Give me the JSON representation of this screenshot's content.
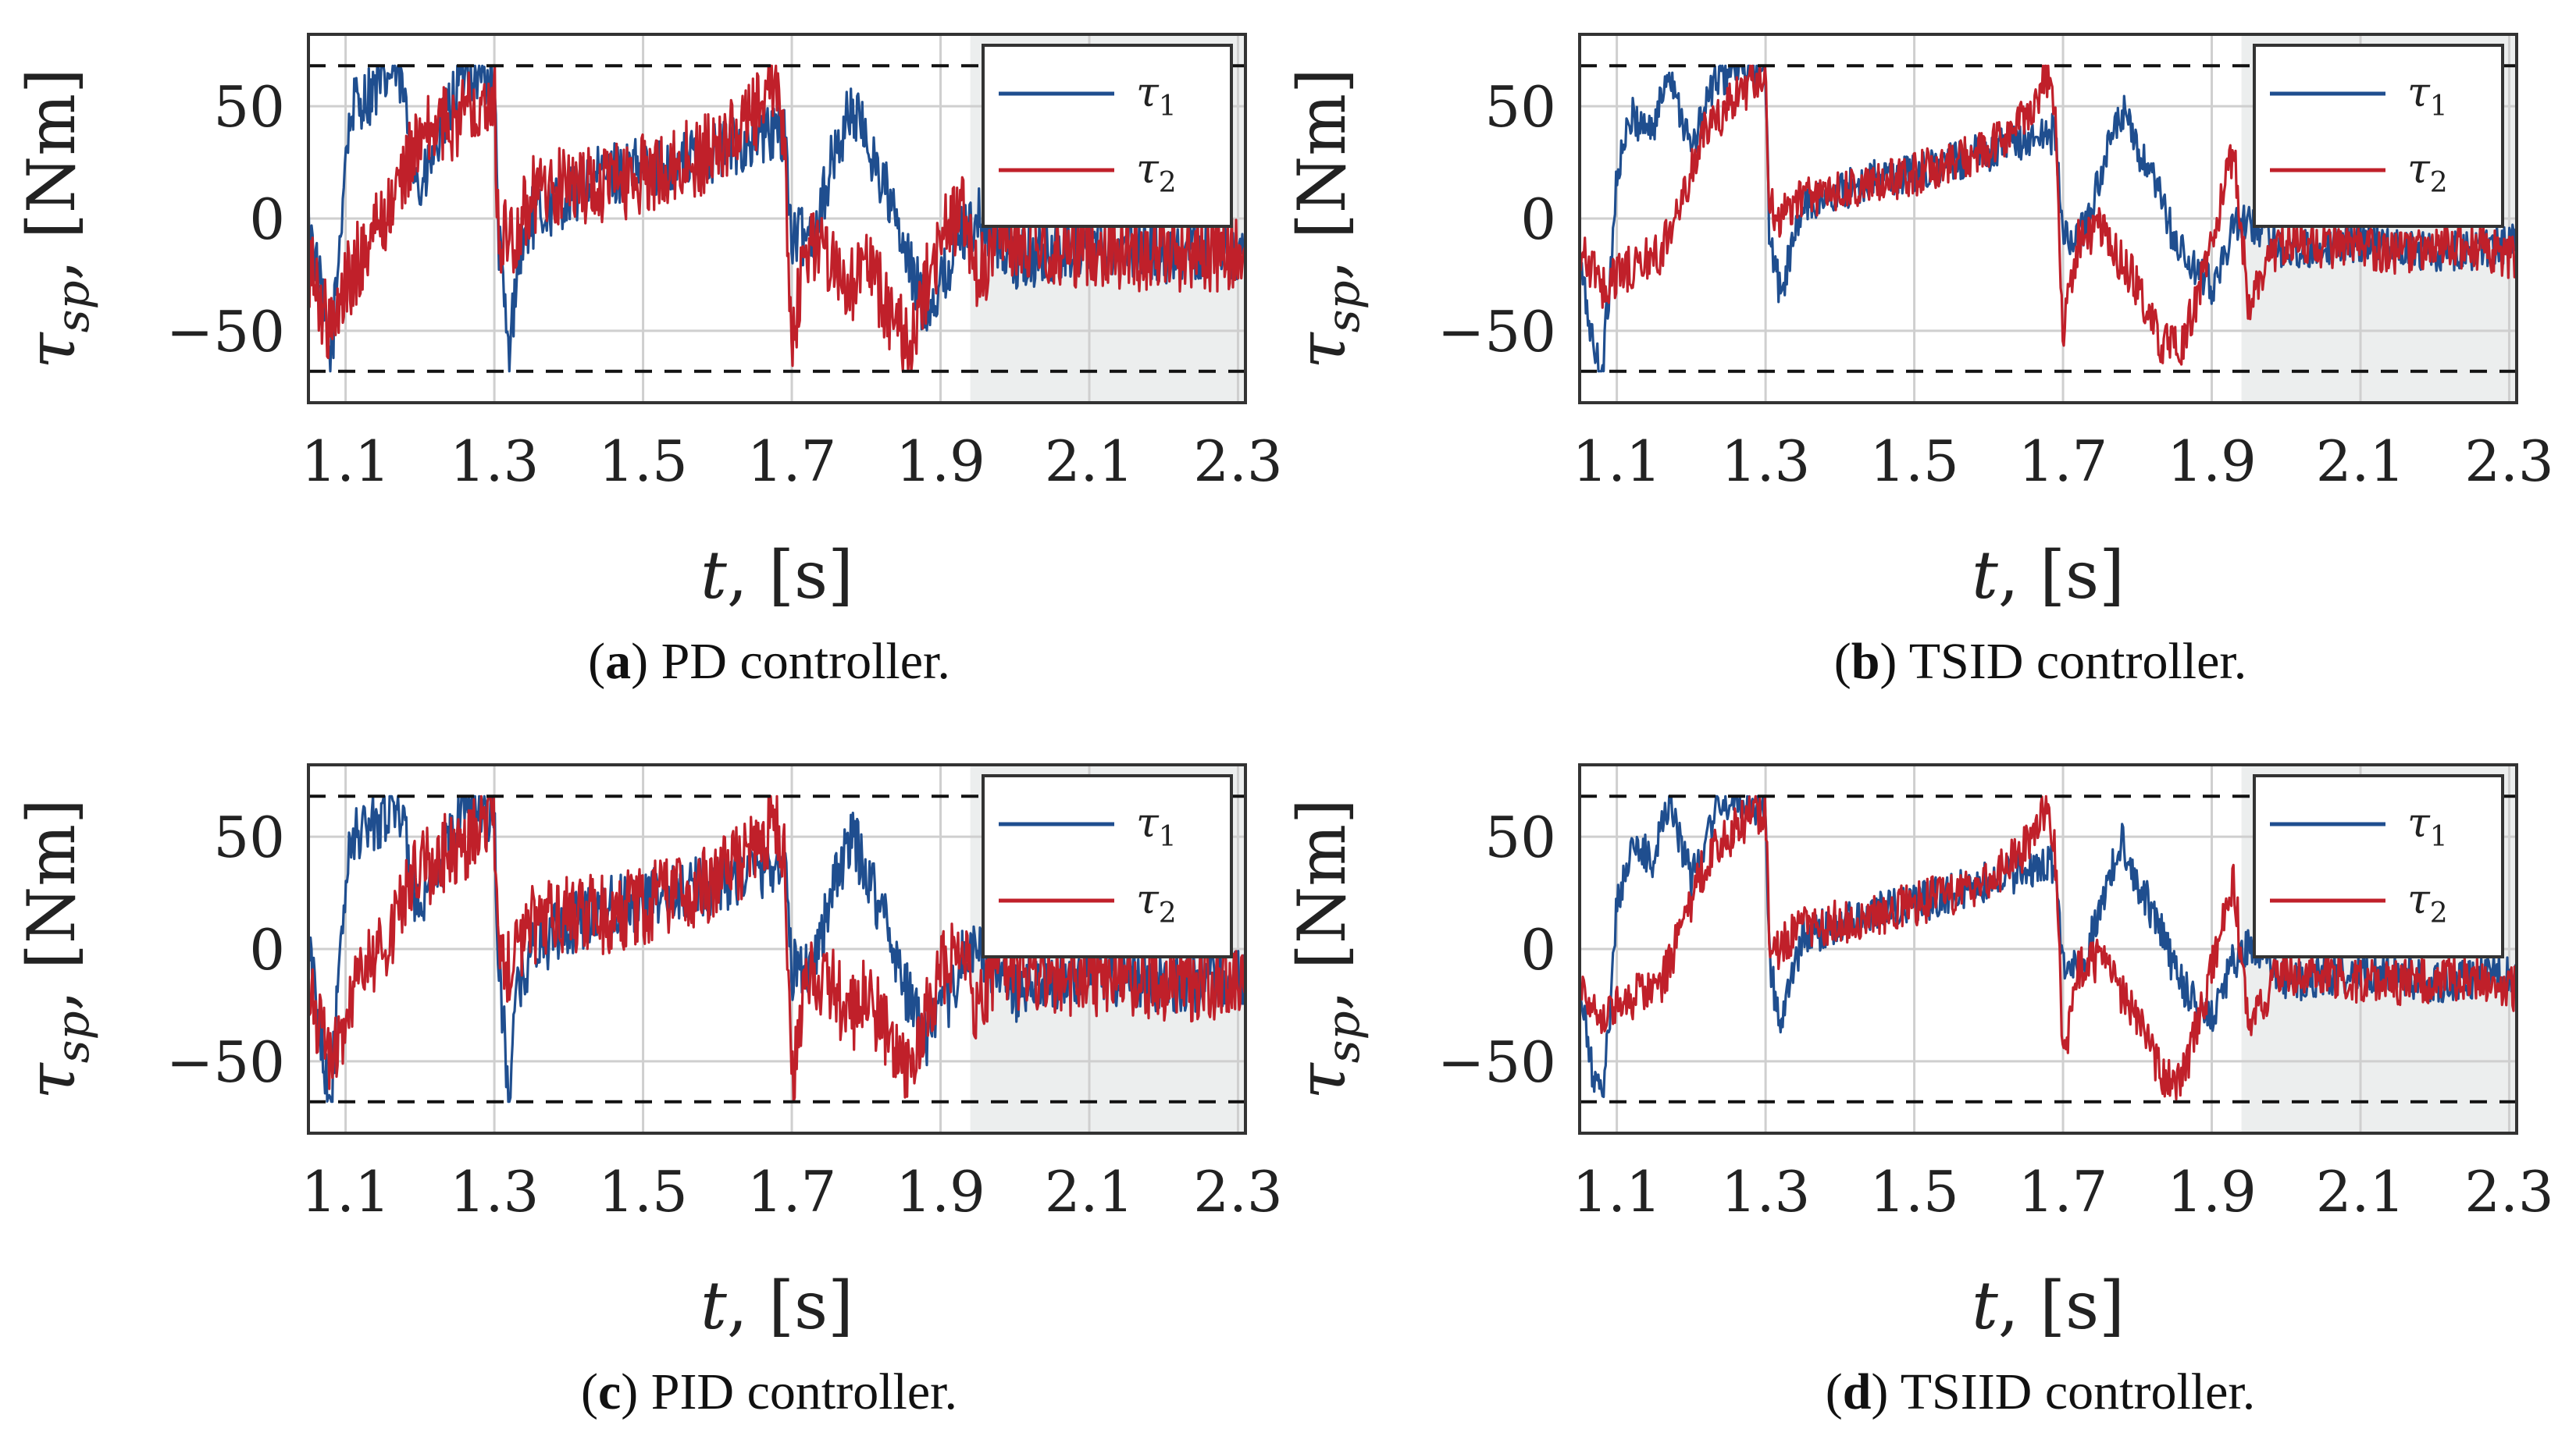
{
  "colors": {
    "tau1": "#1f4e8f",
    "tau2": "#c0202a",
    "grid": "#cfcfcf",
    "shade": "#eceeee",
    "frame": "#333333",
    "limit": "#111111"
  },
  "chart_data": [
    {
      "type": "line",
      "caption": {
        "letter": "a",
        "text": "PD controller."
      },
      "xlabel": {
        "var": "t",
        "unit": "[s]"
      },
      "ylabel": {
        "var": "τ",
        "sub": "sp",
        "unit": "[Nm]"
      },
      "xlim": [
        1.05,
        2.31
      ],
      "ylim": [
        -82,
        82
      ],
      "xticks": [
        "1.1",
        "1.3",
        "1.5",
        "1.7",
        "1.9",
        "2.1",
        "2.3"
      ],
      "yticks": [
        "−50",
        "0",
        "50"
      ],
      "ytick_values": [
        -50,
        0,
        50
      ],
      "limits": [
        -68,
        68
      ],
      "shade_x": [
        1.94,
        2.31
      ],
      "legend": [
        {
          "name": "τ",
          "sub": "1"
        },
        {
          "name": "τ",
          "sub": "2"
        }
      ],
      "series": [
        {
          "name": "τ1",
          "x": [
            1.05,
            1.07,
            1.08,
            1.09,
            1.1,
            1.11,
            1.13,
            1.15,
            1.17,
            1.2,
            1.23,
            1.26,
            1.3,
            1.305,
            1.32,
            1.33,
            1.35,
            1.4,
            1.45,
            1.5,
            1.55,
            1.6,
            1.65,
            1.69,
            1.7,
            1.73,
            1.75,
            1.78,
            1.8,
            1.83,
            1.85,
            1.88,
            1.9,
            1.93,
            1.95,
            2.0,
            2.05,
            2.1,
            2.15,
            2.2,
            2.25,
            2.31
          ],
          "y": [
            0,
            -40,
            -65,
            -20,
            30,
            50,
            55,
            60,
            68,
            10,
            40,
            68,
            60,
            -5,
            -65,
            -20,
            0,
            10,
            20,
            22,
            25,
            30,
            35,
            40,
            -10,
            -5,
            20,
            50,
            35,
            10,
            -15,
            -40,
            -30,
            -5,
            0,
            -20,
            -15,
            -10,
            -12,
            -15,
            -14,
            -15
          ],
          "noise": 14
        },
        {
          "name": "τ2",
          "x": [
            1.05,
            1.08,
            1.1,
            1.13,
            1.16,
            1.19,
            1.22,
            1.25,
            1.28,
            1.3,
            1.305,
            1.32,
            1.35,
            1.4,
            1.45,
            1.5,
            1.55,
            1.6,
            1.65,
            1.68,
            1.69,
            1.7,
            1.72,
            1.75,
            1.78,
            1.8,
            1.83,
            1.86,
            1.88,
            1.9,
            1.93,
            1.95,
            1.98,
            2.0,
            2.05,
            2.1,
            2.15,
            2.2,
            2.25,
            2.31
          ],
          "y": [
            -20,
            -50,
            -30,
            -10,
            5,
            30,
            40,
            45,
            55,
            58,
            -5,
            -10,
            10,
            15,
            15,
            20,
            25,
            30,
            45,
            60,
            40,
            -60,
            -10,
            -15,
            -30,
            -20,
            -40,
            -60,
            -30,
            -10,
            5,
            -30,
            0,
            -10,
            -15,
            -12,
            -14,
            -15,
            -14,
            -18
          ],
          "noise": 18
        }
      ]
    },
    {
      "type": "line",
      "caption": {
        "letter": "b",
        "text": "TSID controller."
      },
      "xlabel": {
        "var": "t",
        "unit": "[s]"
      },
      "ylabel": {
        "var": "τ",
        "sub": "sp",
        "unit": "[Nm]"
      },
      "xlim": [
        1.05,
        2.31
      ],
      "ylim": [
        -82,
        82
      ],
      "xticks": [
        "1.1",
        "1.3",
        "1.5",
        "1.7",
        "1.9",
        "2.1",
        "2.3"
      ],
      "yticks": [
        "−50",
        "0",
        "50"
      ],
      "ytick_values": [
        -50,
        0,
        50
      ],
      "limits": [
        -68,
        68
      ],
      "shade_x": [
        1.94,
        2.31
      ],
      "legend": [
        {
          "name": "τ",
          "sub": "1"
        },
        {
          "name": "τ",
          "sub": "2"
        }
      ],
      "series": [
        {
          "name": "τ1",
          "x": [
            1.05,
            1.07,
            1.08,
            1.09,
            1.1,
            1.12,
            1.15,
            1.17,
            1.2,
            1.23,
            1.26,
            1.3,
            1.305,
            1.32,
            1.33,
            1.35,
            1.4,
            1.45,
            1.5,
            1.55,
            1.6,
            1.65,
            1.69,
            1.7,
            1.73,
            1.75,
            1.78,
            1.8,
            1.83,
            1.85,
            1.88,
            1.9,
            1.93,
            1.95,
            2.0,
            2.05,
            2.1,
            2.15,
            2.2,
            2.25,
            2.31
          ],
          "y": [
            -20,
            -60,
            -68,
            -30,
            20,
            45,
            40,
            68,
            30,
            60,
            68,
            62,
            -5,
            -35,
            -20,
            5,
            12,
            18,
            20,
            25,
            30,
            35,
            38,
            -10,
            -5,
            20,
            48,
            30,
            10,
            -10,
            -25,
            -30,
            -5,
            0,
            -15,
            -12,
            -10,
            -12,
            -15,
            -14,
            -10
          ],
          "noise": 9
        },
        {
          "name": "τ2",
          "x": [
            1.05,
            1.08,
            1.1,
            1.13,
            1.16,
            1.19,
            1.22,
            1.25,
            1.28,
            1.3,
            1.305,
            1.32,
            1.35,
            1.4,
            1.45,
            1.5,
            1.55,
            1.6,
            1.65,
            1.68,
            1.69,
            1.7,
            1.72,
            1.75,
            1.78,
            1.8,
            1.83,
            1.86,
            1.88,
            1.9,
            1.93,
            1.95,
            1.98,
            2.0,
            2.05,
            2.1,
            2.15,
            2.2,
            2.25,
            2.31
          ],
          "y": [
            -15,
            -30,
            -25,
            -20,
            -15,
            10,
            40,
            50,
            60,
            62,
            5,
            0,
            10,
            12,
            15,
            20,
            25,
            30,
            45,
            65,
            40,
            -50,
            -10,
            -5,
            -20,
            -30,
            -55,
            -58,
            -35,
            -10,
            30,
            -40,
            -15,
            -10,
            -12,
            -14,
            -15,
            -14,
            -12,
            -18
          ],
          "noise": 10
        }
      ]
    },
    {
      "type": "line",
      "caption": {
        "letter": "c",
        "text": "PID controller."
      },
      "xlabel": {
        "var": "t",
        "unit": "[s]"
      },
      "ylabel": {
        "var": "τ",
        "sub": "sp",
        "unit": "[Nm]"
      },
      "xlim": [
        1.05,
        2.31
      ],
      "ylim": [
        -82,
        82
      ],
      "xticks": [
        "1.1",
        "1.3",
        "1.5",
        "1.7",
        "1.9",
        "2.1",
        "2.3"
      ],
      "yticks": [
        "−50",
        "0",
        "50"
      ],
      "ytick_values": [
        -50,
        0,
        50
      ],
      "limits": [
        -68,
        68
      ],
      "shade_x": [
        1.94,
        2.31
      ],
      "legend": [
        {
          "name": "τ",
          "sub": "1"
        },
        {
          "name": "τ",
          "sub": "2"
        }
      ],
      "series": [
        {
          "name": "τ1",
          "x": [
            1.05,
            1.07,
            1.08,
            1.09,
            1.1,
            1.11,
            1.13,
            1.15,
            1.17,
            1.2,
            1.23,
            1.26,
            1.3,
            1.305,
            1.32,
            1.33,
            1.35,
            1.4,
            1.45,
            1.5,
            1.55,
            1.6,
            1.65,
            1.69,
            1.7,
            1.73,
            1.75,
            1.78,
            1.8,
            1.83,
            1.85,
            1.88,
            1.9,
            1.93,
            1.95,
            2.0,
            2.05,
            2.1,
            2.15,
            2.2,
            2.25,
            2.31
          ],
          "y": [
            0,
            -45,
            -68,
            -20,
            30,
            50,
            55,
            60,
            68,
            10,
            40,
            68,
            60,
            -5,
            -68,
            -20,
            0,
            10,
            20,
            22,
            25,
            30,
            35,
            40,
            -10,
            -5,
            20,
            50,
            35,
            10,
            -15,
            -40,
            -30,
            -5,
            0,
            -20,
            -15,
            -10,
            -12,
            -15,
            -14,
            -15
          ],
          "noise": 14
        },
        {
          "name": "τ2",
          "x": [
            1.05,
            1.08,
            1.1,
            1.13,
            1.16,
            1.19,
            1.22,
            1.25,
            1.28,
            1.3,
            1.305,
            1.32,
            1.35,
            1.4,
            1.45,
            1.5,
            1.55,
            1.6,
            1.65,
            1.68,
            1.69,
            1.7,
            1.72,
            1.75,
            1.78,
            1.8,
            1.83,
            1.86,
            1.88,
            1.9,
            1.93,
            1.95,
            1.98,
            2.0,
            2.05,
            2.1,
            2.15,
            2.2,
            2.25,
            2.31
          ],
          "y": [
            -20,
            -50,
            -30,
            -10,
            5,
            30,
            40,
            45,
            55,
            58,
            -5,
            -10,
            10,
            15,
            15,
            20,
            25,
            30,
            45,
            60,
            40,
            -60,
            -10,
            -15,
            -30,
            -20,
            -40,
            -60,
            -30,
            -10,
            5,
            -30,
            0,
            -10,
            -15,
            -12,
            -14,
            -15,
            -14,
            -18
          ],
          "noise": 18
        }
      ]
    },
    {
      "type": "line",
      "caption": {
        "letter": "d",
        "text": "TSIID controller."
      },
      "xlabel": {
        "var": "t",
        "unit": "[s]"
      },
      "ylabel": {
        "var": "τ",
        "sub": "sp",
        "unit": "[Nm]"
      },
      "xlim": [
        1.05,
        2.31
      ],
      "ylim": [
        -82,
        82
      ],
      "xticks": [
        "1.1",
        "1.3",
        "1.5",
        "1.7",
        "1.9",
        "2.1",
        "2.3"
      ],
      "yticks": [
        "−50",
        "0",
        "50"
      ],
      "ytick_values": [
        -50,
        0,
        50
      ],
      "limits": [
        -68,
        68
      ],
      "shade_x": [
        1.94,
        2.31
      ],
      "legend": [
        {
          "name": "τ",
          "sub": "1"
        },
        {
          "name": "τ",
          "sub": "2"
        }
      ],
      "series": [
        {
          "name": "τ1",
          "x": [
            1.05,
            1.07,
            1.08,
            1.09,
            1.1,
            1.12,
            1.15,
            1.17,
            1.2,
            1.23,
            1.26,
            1.3,
            1.305,
            1.32,
            1.33,
            1.35,
            1.4,
            1.45,
            1.5,
            1.55,
            1.6,
            1.65,
            1.69,
            1.7,
            1.73,
            1.75,
            1.78,
            1.8,
            1.83,
            1.85,
            1.88,
            1.9,
            1.93,
            1.95,
            2.0,
            2.05,
            2.1,
            2.15,
            2.2,
            2.25,
            2.31
          ],
          "y": [
            -20,
            -60,
            -68,
            -30,
            20,
            45,
            40,
            68,
            30,
            60,
            68,
            62,
            -5,
            -35,
            -20,
            5,
            12,
            18,
            20,
            25,
            30,
            35,
            38,
            -10,
            -5,
            20,
            48,
            30,
            10,
            -10,
            -25,
            -30,
            -5,
            0,
            -15,
            -12,
            -10,
            -12,
            -15,
            -14,
            -10
          ],
          "noise": 9
        },
        {
          "name": "τ2",
          "x": [
            1.05,
            1.08,
            1.1,
            1.13,
            1.16,
            1.19,
            1.22,
            1.25,
            1.28,
            1.3,
            1.305,
            1.32,
            1.35,
            1.4,
            1.45,
            1.5,
            1.55,
            1.6,
            1.65,
            1.68,
            1.69,
            1.7,
            1.72,
            1.75,
            1.78,
            1.8,
            1.83,
            1.86,
            1.88,
            1.9,
            1.93,
            1.95,
            1.98,
            2.0,
            2.05,
            2.1,
            2.15,
            2.2,
            2.25,
            2.31
          ],
          "y": [
            -15,
            -30,
            -25,
            -20,
            -15,
            10,
            40,
            50,
            60,
            62,
            5,
            0,
            10,
            12,
            15,
            20,
            25,
            30,
            45,
            65,
            40,
            -50,
            -10,
            -5,
            -20,
            -30,
            -55,
            -58,
            -35,
            -10,
            30,
            -40,
            -15,
            -10,
            -12,
            -14,
            -15,
            -14,
            -12,
            -18
          ],
          "noise": 10
        }
      ]
    }
  ]
}
